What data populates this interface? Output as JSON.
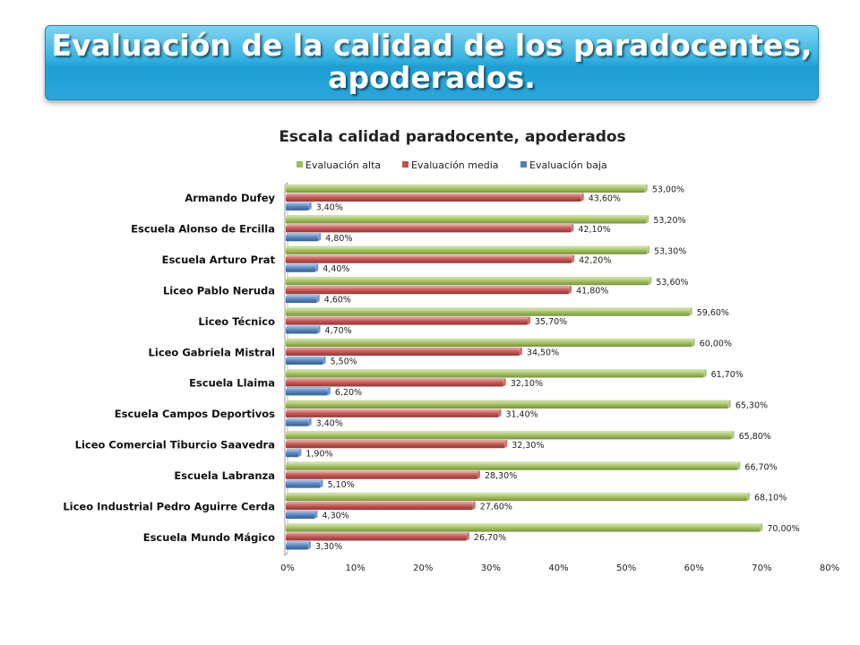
{
  "banner": {
    "title": "Evaluación de la calidad de los paradocentes,\napoderados."
  },
  "colors": {
    "alta": "#9bbb59",
    "media": "#c0504d",
    "baja": "#4f81bd"
  },
  "chart_data": {
    "type": "bar",
    "orientation": "horizontal",
    "title": "Escala calidad paradocente, apoderados",
    "legend_position": "top",
    "xlim": [
      0,
      80
    ],
    "ticks": [
      "0%",
      "10%",
      "20%",
      "30%",
      "40%",
      "50%",
      "60%",
      "70%",
      "80%"
    ],
    "tick_values": [
      0,
      10,
      20,
      30,
      40,
      50,
      60,
      70,
      80
    ],
    "categories": [
      "Armando Dufey",
      "Escuela Alonso de Ercilla",
      "Escuela Arturo Prat",
      "Liceo Pablo Neruda",
      "Liceo Técnico",
      "Liceo Gabriela Mistral",
      "Escuela Llaima",
      "Escuela Campos Deportivos",
      "Liceo Comercial Tiburcio Saavedra",
      "Escuela Labranza",
      "Liceo Industrial Pedro Aguirre Cerda",
      "Escuela Mundo Mágico"
    ],
    "series": [
      {
        "name": "Evaluación alta",
        "key": "alta",
        "values": [
          53.0,
          53.2,
          53.3,
          53.6,
          59.6,
          60.0,
          61.7,
          65.3,
          65.8,
          66.7,
          68.1,
          70.0
        ],
        "labels": [
          "53,00%",
          "53,20%",
          "53,30%",
          "53,60%",
          "59,60%",
          "60,00%",
          "61,70%",
          "65,30%",
          "65,80%",
          "66,70%",
          "68,10%",
          "70,00%"
        ]
      },
      {
        "name": "Evaluación media",
        "key": "media",
        "values": [
          43.6,
          42.1,
          42.2,
          41.8,
          35.7,
          34.5,
          32.1,
          31.4,
          32.3,
          28.3,
          27.6,
          26.7
        ],
        "labels": [
          "43,60%",
          "42,10%",
          "42,20%",
          "41,80%",
          "35,70%",
          "34,50%",
          "32,10%",
          "31,40%",
          "32,30%",
          "28,30%",
          "27,60%",
          "26,70%"
        ]
      },
      {
        "name": "Evaluación baja",
        "key": "baja",
        "values": [
          3.4,
          4.8,
          4.4,
          4.6,
          4.7,
          5.5,
          6.2,
          3.4,
          1.9,
          5.1,
          4.3,
          3.3
        ],
        "labels": [
          "3,40%",
          "4,80%",
          "4,40%",
          "4,60%",
          "4,70%",
          "5,50%",
          "6,20%",
          "3,40%",
          "1,90%",
          "5,10%",
          "4,30%",
          "3,30%"
        ]
      }
    ]
  }
}
